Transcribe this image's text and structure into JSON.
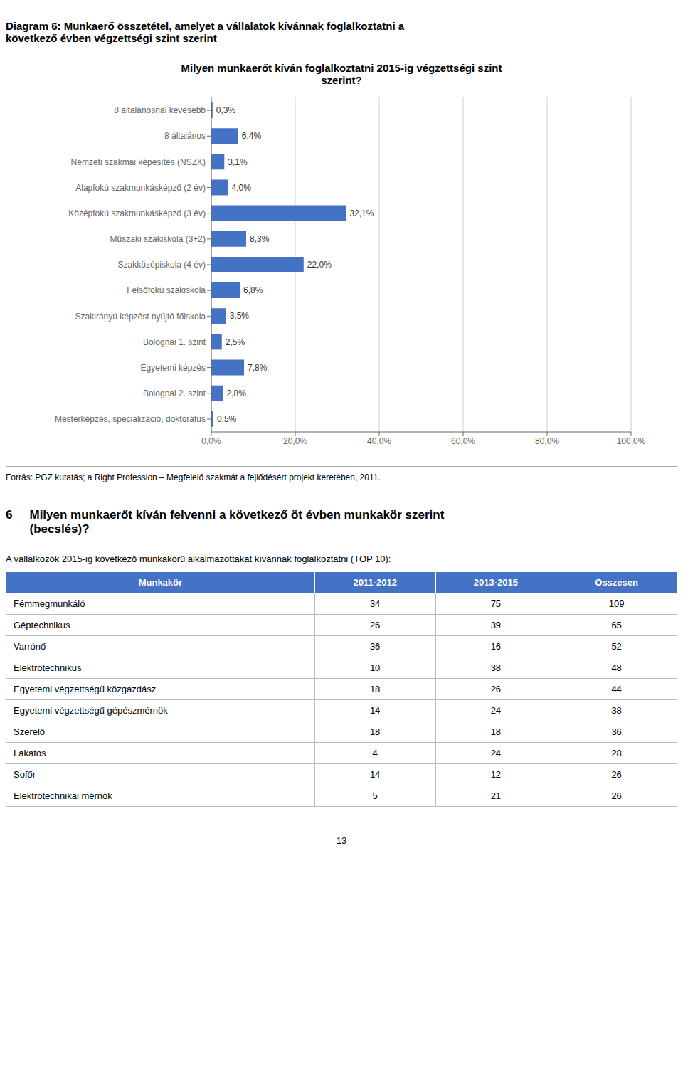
{
  "chart_data": {
    "type": "bar",
    "title": "Milyen munkaerőt kíván foglalkoztatni 2015-ig végzettségi szint\nszerint?",
    "categories": [
      "8 általánosnál kevesebb",
      "8 általános",
      "Nemzeti szakmai képesítés (NSZK)",
      "Alapfokú szakmunkásképző (2 év)",
      "Középfokú szakmunkásképző (3 év)",
      "Műszaki szakiskola (3+2)",
      "Szakközépiskola (4 év)",
      "Felsőfokú szakiskola",
      "Szakirányú képzést nyújtó főiskola",
      "Bolognai 1. szint",
      "Egyetemi képzés",
      "Bolognai 2. szint",
      "Mesterképzés, specializáció, doktorátus"
    ],
    "values": [
      0.3,
      6.4,
      3.1,
      4.0,
      32.1,
      8.3,
      22.0,
      6.8,
      3.5,
      2.5,
      7.8,
      2.8,
      0.5
    ],
    "value_labels": [
      "0,3%",
      "6,4%",
      "3,1%",
      "4,0%",
      "32,1%",
      "8,3%",
      "22,0%",
      "6,8%",
      "3,5%",
      "2,5%",
      "7,8%",
      "2,8%",
      "0,5%"
    ],
    "color": "#4472C4",
    "orientation": "horizontal",
    "data_labels": true,
    "xlim": [
      0,
      100
    ],
    "xticks": [
      {
        "value": 0,
        "label": "0,0%"
      },
      {
        "value": 20,
        "label": "20,0%"
      },
      {
        "value": 40,
        "label": "40,0%"
      },
      {
        "value": 60,
        "label": "60,0%"
      },
      {
        "value": 80,
        "label": "80,0%"
      },
      {
        "value": 100,
        "label": "100,0%"
      }
    ],
    "grid": true
  },
  "diagram_title": "Diagram 6: Munkaerő összetétel, amelyet a vállalatok kívánnak foglalkoztatni a\nkövetkező évben végzettségi szint szerint",
  "source_text": "Forrás: PGZ kutatás; a Right Profession – Megfelelő szakmát a fejlődésért projekt keretében, 2011.",
  "section_number": "6",
  "section_heading": "Milyen munkaerőt kíván felvenni a következő öt évben munkakör szerint\n(becslés)?",
  "table_intro": "A vállalkozók 2015-ig következő munkakörű alkalmazottakat kívánnak foglalkoztatni (TOP 10):",
  "table": {
    "headers": [
      "Munkakör",
      "2011-2012",
      "2013-2015",
      "Összesen"
    ],
    "header_color": "#4472C4",
    "header_text_color": "#FFFFFF",
    "rows": [
      [
        "Fémmegmunkáló",
        "34",
        "75",
        "109"
      ],
      [
        "Géptechnikus",
        "26",
        "39",
        "65"
      ],
      [
        "Varrónő",
        "36",
        "16",
        "52"
      ],
      [
        "Elektrotechnikus",
        "10",
        "38",
        "48"
      ],
      [
        "Egyetemi végzettségű közgazdász",
        "18",
        "26",
        "44"
      ],
      [
        "Egyetemi végzettségű gépészmérnök",
        "14",
        "24",
        "38"
      ],
      [
        "Szerelő",
        "18",
        "18",
        "36"
      ],
      [
        "Lakatos",
        "4",
        "24",
        "28"
      ],
      [
        "Sofőr",
        "14",
        "12",
        "26"
      ],
      [
        "Elektrotechnikai mérnök",
        "5",
        "21",
        "26"
      ]
    ]
  },
  "footer": "13"
}
